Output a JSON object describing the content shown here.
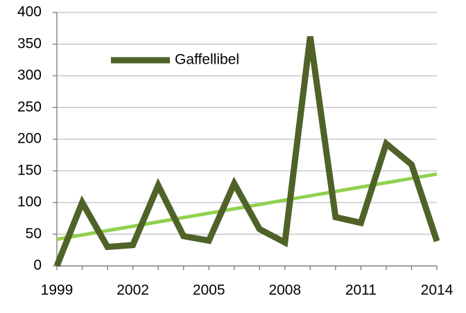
{
  "chart_data": {
    "type": "line",
    "x": [
      1999,
      2000,
      2001,
      2002,
      2003,
      2004,
      2005,
      2006,
      2007,
      2008,
      2009,
      2010,
      2011,
      2012,
      2013,
      2014
    ],
    "series": [
      {
        "name": "Gaffellibel",
        "color": "#4f6228",
        "values": [
          0,
          100,
          30,
          33,
          127,
          47,
          40,
          130,
          58,
          37,
          362,
          77,
          68,
          193,
          160,
          39
        ]
      }
    ],
    "trendline": {
      "color": "#92d050",
      "x": [
        1999,
        2014
      ],
      "values": [
        42,
        145
      ]
    },
    "xlim": [
      1999,
      2014
    ],
    "xticks": [
      1999,
      2002,
      2005,
      2008,
      2011,
      2014
    ],
    "ylim": [
      0,
      400
    ],
    "yticks": [
      0,
      50,
      100,
      150,
      200,
      250,
      300,
      350,
      400
    ],
    "grid": true,
    "legend": "top-left"
  }
}
